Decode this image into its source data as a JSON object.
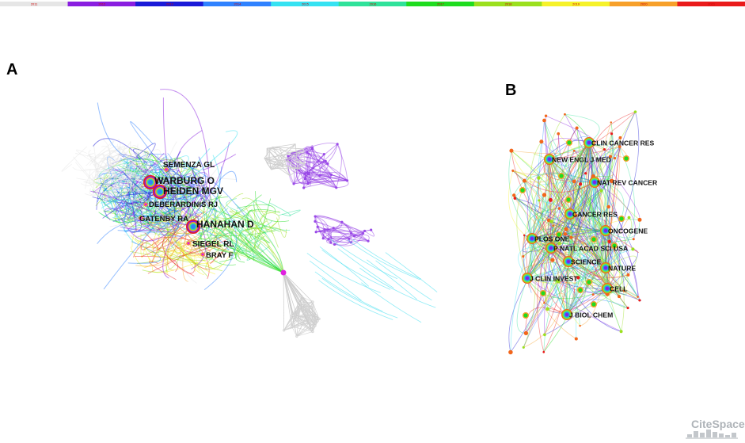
{
  "timeline": {
    "years": [
      "2011",
      "2012",
      "2013",
      "2014",
      "2015",
      "2016",
      "2017",
      "2018",
      "2019",
      "2020",
      "2021"
    ],
    "colors": [
      "#e6e6e6",
      "#8a1ee0",
      "#1a1ad8",
      "#2f82ff",
      "#35e2f2",
      "#2fe29a",
      "#1fdc1f",
      "#9be01e",
      "#f6f22a",
      "#f7a02a",
      "#ea1b1b"
    ]
  },
  "panels": [
    {
      "letter": "A",
      "nodes": [
        {
          "label": "SEMENZA GL",
          "size": "small"
        },
        {
          "label": "WARBURG O",
          "size": "large"
        },
        {
          "label": "HEIDEN MGV",
          "size": "large"
        },
        {
          "label": "DEBERARDINIS RJ",
          "size": "small"
        },
        {
          "label": "GATENBY RA",
          "size": "small"
        },
        {
          "label": "HANAHAN D",
          "size": "large"
        },
        {
          "label": "SIEGEL RL",
          "size": "small"
        },
        {
          "label": "BRAY F",
          "size": "small"
        }
      ]
    },
    {
      "letter": "B",
      "nodes": [
        {
          "label": "CLIN CANCER RES",
          "size": "small"
        },
        {
          "label": "NEW ENGL J MED",
          "size": "small"
        },
        {
          "label": "NAT REV CANCER",
          "size": "small"
        },
        {
          "label": "CANCER RES",
          "size": "small"
        },
        {
          "label": "ONCOGENE",
          "size": "small"
        },
        {
          "label": "PLOS ONE",
          "size": "small"
        },
        {
          "label": "P NATL ACAD SCI USA",
          "size": "small"
        },
        {
          "label": "SCIENCE",
          "size": "small"
        },
        {
          "label": "NATURE",
          "size": "small"
        },
        {
          "label": "J CLIN INVEST",
          "size": "small"
        },
        {
          "label": "CELL",
          "size": "small"
        },
        {
          "label": "J BIOL CHEM",
          "size": "small"
        }
      ]
    }
  ],
  "watermark": "CiteSpace"
}
